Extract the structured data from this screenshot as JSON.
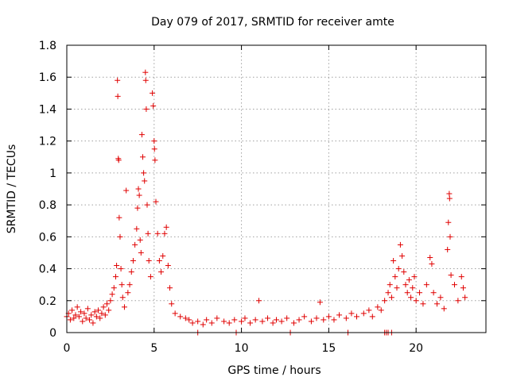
{
  "chart_data": {
    "type": "scatter",
    "title": "Day 079 of 2017, SRMTID for receiver amte",
    "xlabel": "GPS time / hours",
    "ylabel": "SRMTID / TECUs",
    "xlim": [
      0,
      24
    ],
    "ylim": [
      0,
      1.8
    ],
    "x_ticks": [
      0,
      5,
      10,
      15,
      20
    ],
    "x_tick_labels": [
      "0",
      "5",
      "10",
      "15",
      "20"
    ],
    "y_ticks": [
      0,
      0.2,
      0.4,
      0.6,
      0.8,
      1.0,
      1.2,
      1.4,
      1.6,
      1.8
    ],
    "y_tick_labels": [
      "0",
      "0.2",
      "0.4",
      "0.6",
      "0.8",
      "1",
      "1.2",
      "1.4",
      "1.6",
      "1.8"
    ],
    "grid": true,
    "marker": "+",
    "color": "#e00000",
    "series": [
      {
        "name": "SRMTID",
        "points": [
          [
            0.0,
            0.1
          ],
          [
            0.1,
            0.12
          ],
          [
            0.2,
            0.08
          ],
          [
            0.3,
            0.14
          ],
          [
            0.4,
            0.09
          ],
          [
            0.5,
            0.11
          ],
          [
            0.6,
            0.16
          ],
          [
            0.7,
            0.1
          ],
          [
            0.8,
            0.13
          ],
          [
            0.9,
            0.07
          ],
          [
            1.0,
            0.12
          ],
          [
            1.1,
            0.09
          ],
          [
            1.2,
            0.15
          ],
          [
            1.3,
            0.08
          ],
          [
            1.4,
            0.11
          ],
          [
            1.5,
            0.06
          ],
          [
            1.6,
            0.13
          ],
          [
            1.7,
            0.1
          ],
          [
            1.8,
            0.14
          ],
          [
            1.9,
            0.09
          ],
          [
            2.0,
            0.12
          ],
          [
            2.1,
            0.16
          ],
          [
            2.2,
            0.11
          ],
          [
            2.3,
            0.18
          ],
          [
            2.4,
            0.14
          ],
          [
            2.5,
            0.2
          ],
          [
            2.6,
            0.24
          ],
          [
            2.7,
            0.28
          ],
          [
            2.8,
            0.35
          ],
          [
            2.85,
            0.42
          ],
          [
            2.9,
            1.58
          ],
          [
            2.92,
            1.48
          ],
          [
            2.95,
            1.09
          ],
          [
            2.97,
            1.08
          ],
          [
            3.0,
            0.72
          ],
          [
            3.05,
            0.6
          ],
          [
            3.1,
            0.4
          ],
          [
            3.15,
            0.3
          ],
          [
            3.2,
            0.22
          ],
          [
            3.3,
            0.16
          ],
          [
            3.4,
            0.89
          ],
          [
            3.5,
            0.25
          ],
          [
            3.6,
            0.3
          ],
          [
            3.7,
            0.38
          ],
          [
            3.8,
            0.45
          ],
          [
            3.9,
            0.55
          ],
          [
            4.0,
            0.65
          ],
          [
            4.05,
            0.78
          ],
          [
            4.1,
            0.9
          ],
          [
            4.15,
            0.86
          ],
          [
            4.2,
            0.58
          ],
          [
            4.25,
            0.5
          ],
          [
            4.3,
            1.24
          ],
          [
            4.35,
            1.1
          ],
          [
            4.4,
            1.0
          ],
          [
            4.45,
            0.95
          ],
          [
            4.5,
            1.63
          ],
          [
            4.52,
            1.58
          ],
          [
            4.55,
            1.4
          ],
          [
            4.6,
            0.8
          ],
          [
            4.65,
            0.62
          ],
          [
            4.7,
            0.45
          ],
          [
            4.8,
            0.35
          ],
          [
            4.9,
            1.5
          ],
          [
            4.95,
            1.42
          ],
          [
            5.0,
            1.2
          ],
          [
            5.02,
            1.15
          ],
          [
            5.05,
            1.08
          ],
          [
            5.1,
            0.82
          ],
          [
            5.2,
            0.62
          ],
          [
            5.3,
            0.45
          ],
          [
            5.4,
            0.38
          ],
          [
            5.5,
            0.48
          ],
          [
            5.6,
            0.62
          ],
          [
            5.7,
            0.66
          ],
          [
            5.8,
            0.42
          ],
          [
            5.9,
            0.28
          ],
          [
            6.0,
            0.18
          ],
          [
            6.2,
            0.12
          ],
          [
            6.5,
            0.1
          ],
          [
            6.8,
            0.09
          ],
          [
            7.0,
            0.08
          ],
          [
            7.2,
            0.06
          ],
          [
            7.5,
            0.07
          ],
          [
            7.8,
            0.05
          ],
          [
            8.0,
            0.08
          ],
          [
            8.3,
            0.06
          ],
          [
            8.6,
            0.09
          ],
          [
            9.0,
            0.07
          ],
          [
            9.3,
            0.06
          ],
          [
            9.6,
            0.08
          ],
          [
            10.0,
            0.07
          ],
          [
            10.2,
            0.09
          ],
          [
            10.5,
            0.06
          ],
          [
            10.8,
            0.08
          ],
          [
            11.0,
            0.2
          ],
          [
            11.2,
            0.07
          ],
          [
            11.5,
            0.09
          ],
          [
            11.8,
            0.06
          ],
          [
            12.0,
            0.08
          ],
          [
            12.3,
            0.07
          ],
          [
            12.6,
            0.09
          ],
          [
            13.0,
            0.06
          ],
          [
            13.3,
            0.08
          ],
          [
            13.6,
            0.1
          ],
          [
            14.0,
            0.07
          ],
          [
            14.3,
            0.09
          ],
          [
            14.5,
            0.19
          ],
          [
            14.7,
            0.08
          ],
          [
            15.0,
            0.1
          ],
          [
            15.3,
            0.08
          ],
          [
            15.6,
            0.11
          ],
          [
            16.0,
            0.09
          ],
          [
            16.3,
            0.12
          ],
          [
            16.6,
            0.1
          ],
          [
            17.0,
            0.12
          ],
          [
            17.3,
            0.14
          ],
          [
            17.5,
            0.1
          ],
          [
            17.8,
            0.16
          ],
          [
            18.0,
            0.14
          ],
          [
            18.2,
            0.2
          ],
          [
            18.4,
            0.25
          ],
          [
            18.5,
            0.3
          ],
          [
            18.6,
            0.22
          ],
          [
            18.7,
            0.45
          ],
          [
            18.8,
            0.35
          ],
          [
            18.9,
            0.28
          ],
          [
            19.0,
            0.4
          ],
          [
            19.1,
            0.55
          ],
          [
            19.2,
            0.48
          ],
          [
            19.3,
            0.38
          ],
          [
            19.4,
            0.3
          ],
          [
            19.5,
            0.25
          ],
          [
            19.6,
            0.33
          ],
          [
            19.7,
            0.22
          ],
          [
            19.8,
            0.28
          ],
          [
            19.9,
            0.35
          ],
          [
            20.0,
            0.2
          ],
          [
            20.2,
            0.25
          ],
          [
            20.4,
            0.18
          ],
          [
            20.6,
            0.3
          ],
          [
            20.8,
            0.47
          ],
          [
            20.9,
            0.43
          ],
          [
            21.0,
            0.25
          ],
          [
            21.2,
            0.18
          ],
          [
            21.4,
            0.22
          ],
          [
            21.6,
            0.15
          ],
          [
            21.8,
            0.52
          ],
          [
            21.85,
            0.69
          ],
          [
            21.9,
            0.87
          ],
          [
            21.92,
            0.84
          ],
          [
            21.95,
            0.6
          ],
          [
            22.0,
            0.36
          ],
          [
            22.2,
            0.3
          ],
          [
            22.4,
            0.2
          ],
          [
            22.6,
            0.35
          ],
          [
            22.7,
            0.28
          ],
          [
            22.8,
            0.22
          ]
        ],
        "zero_points": [
          7.5,
          9.7,
          12.8,
          16.1,
          18.2,
          18.3,
          18.4,
          18.6
        ]
      }
    ]
  }
}
